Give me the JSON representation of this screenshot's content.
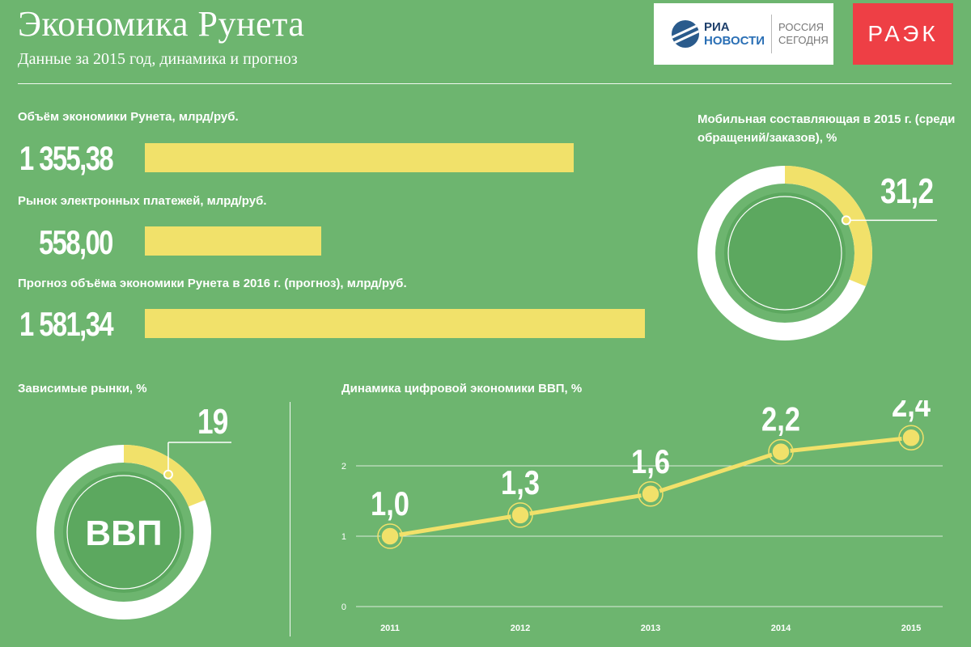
{
  "header": {
    "title": "Экономика Рунета",
    "subtitle": "Данные за 2015 год, динамика и прогноз",
    "logo_ria_top": "РИА",
    "logo_ria_bottom": "НОВОСТИ",
    "logo_ria_right_1": "РОССИЯ",
    "logo_ria_right_2": "СЕГОДНЯ",
    "logo_raek": "РАЭК"
  },
  "colors": {
    "background": "#6db56f",
    "accent": "#f1e16a",
    "ring_bg": "#ffffff"
  },
  "chart_data": [
    {
      "type": "bar",
      "title": "",
      "categories": [
        "Объём экономики Рунета, млрд/руб.",
        "Рынок электронных платежей, млрд/руб.",
        "Прогноз объёма экономики Рунета в 2016 г. (прогноз), млрд/руб."
      ],
      "values": [
        1355.38,
        558.0,
        1581.34
      ],
      "value_labels": [
        "1 355,38",
        "558,00",
        "1 581,34"
      ],
      "orientation": "horizontal",
      "xlim": [
        0,
        1581.34
      ]
    },
    {
      "type": "pie",
      "title": "Мобильная составляющая в 2015 г. (среди обращений/заказов), %",
      "values": [
        31.2
      ],
      "value_label": "31,2",
      "center_label": ""
    },
    {
      "type": "pie",
      "title": "Зависимые рынки, %",
      "values": [
        19
      ],
      "value_label": "19",
      "center_label": "ВВП"
    },
    {
      "type": "line",
      "title": "Динамика цифровой экономики ВВП, %",
      "x": [
        "2011",
        "2012",
        "2013",
        "2014",
        "2015"
      ],
      "values": [
        1.0,
        1.3,
        1.6,
        2.2,
        2.4
      ],
      "value_labels": [
        "1,0",
        "1,3",
        "1,6",
        "2,2",
        "2,4"
      ],
      "yticks": [
        "0",
        "1",
        "2"
      ],
      "ylim": [
        0,
        2.8
      ],
      "grid": true
    }
  ]
}
